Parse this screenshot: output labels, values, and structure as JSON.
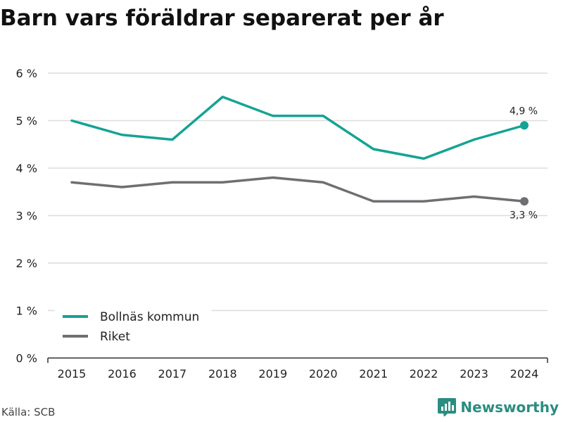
{
  "title": "Barn vars föräldrar separerat per år",
  "source": "Källa: SCB",
  "brand": "Newsworthy",
  "chart_data": {
    "type": "line",
    "title": "Barn vars föräldrar separerat per år",
    "x": [
      "2015",
      "2016",
      "2017",
      "2018",
      "2019",
      "2020",
      "2021",
      "2022",
      "2023",
      "2024"
    ],
    "y_ticks": [
      "0 %",
      "1 %",
      "2 %",
      "3 %",
      "4 %",
      "5 %",
      "6 %"
    ],
    "ylim": [
      0,
      6
    ],
    "grid": true,
    "legend_position": "bottom-left",
    "series": [
      {
        "name": "Bollnäs kommun",
        "color": "#14a394",
        "values": [
          5.0,
          4.7,
          4.6,
          5.5,
          5.1,
          5.1,
          4.4,
          4.2,
          4.6,
          4.9
        ],
        "end_label": "4,9 %"
      },
      {
        "name": "Riket",
        "color": "#6f6e72",
        "values": [
          3.7,
          3.6,
          3.7,
          3.7,
          3.8,
          3.7,
          3.3,
          3.3,
          3.4,
          3.3
        ],
        "end_label": "3,3 %"
      }
    ]
  }
}
